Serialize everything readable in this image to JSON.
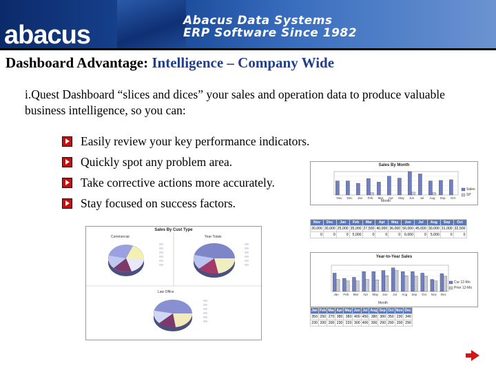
{
  "header": {
    "logo_text": "abacus",
    "brand_line1": "Abacus Data Systems",
    "brand_line2": "ERP Software Since 1982"
  },
  "slide": {
    "title_bold": "Dashboard Advantage:",
    "title_highlight": "Intelligence – Company Wide",
    "intro": "i.Quest Dashboard “slices and dices” your sales and operation data to produce valuable business intelligence, so you can:",
    "bullets": [
      "Easily review your key performance indicators.",
      "Quickly spot any problem area.",
      "Take corrective actions more accurately.",
      "Stay focused on success factors."
    ]
  },
  "colors": {
    "accent_title": "#1f3f8c",
    "bullet_marker": "#c41010",
    "bar_series_1": "#6f7fc0",
    "bar_series_2": "#c8cbd6"
  },
  "pie_panel": {
    "title": "Sales By Cust Type",
    "pie1_label": "Commercial",
    "pie2_label": "Year Totals",
    "pie3_label": "Law Office"
  },
  "bar_panel1": {
    "title": "Sales By Month",
    "xlabel": "Month",
    "legend": [
      "Sales",
      "SP"
    ],
    "table": {
      "headers": [
        "Nov",
        "Dec",
        "Jan",
        "Feb",
        "Mar",
        "Apr",
        "May",
        "Jun",
        "Jul",
        "Aug",
        "Sep",
        "Oct"
      ],
      "row1": [
        "30,000",
        "30,000",
        "25,000",
        "35,000",
        "27,500",
        "40,000",
        "36,000",
        "50,000",
        "45,000",
        "30,000",
        "31,000",
        "32,500"
      ],
      "row2": [
        "0",
        "0",
        "0",
        "5,000",
        "0",
        "0",
        "0",
        "6,000",
        "0",
        "5,000",
        "0",
        "0"
      ]
    }
  },
  "bar_panel2": {
    "title": "Year-to-Year Sales",
    "xlabel": "Month",
    "legend": [
      "Cur 12-Mo",
      "Prior 12-Mo"
    ],
    "table": {
      "headers": [
        "Jan",
        "Feb",
        "Mar",
        "Apr",
        "May",
        "Jun",
        "Jul",
        "Aug",
        "Sep",
        "Oct",
        "Nov",
        "Dec"
      ],
      "row1": [
        "350",
        "250",
        "270",
        "380",
        "380",
        "400",
        "450",
        "380",
        "380",
        "350",
        "230",
        "340"
      ],
      "row2": [
        "230",
        "200",
        "200",
        "230",
        "220",
        "300",
        "400",
        "300",
        "290",
        "290",
        "200",
        "290"
      ]
    }
  },
  "chart_data": [
    {
      "type": "pie",
      "title": "Sales By Cust Type",
      "labels": [
        "Commercial",
        "Year Totals",
        "Law Office"
      ]
    },
    {
      "type": "bar",
      "title": "Sales By Month",
      "categories": [
        "Nov",
        "Dec",
        "Jan",
        "Feb",
        "Mar",
        "Apr",
        "May",
        "Jun",
        "Jul",
        "Aug",
        "Sep",
        "Oct"
      ],
      "series": [
        {
          "name": "Sales",
          "values": [
            30000,
            30000,
            25000,
            35000,
            27500,
            40000,
            36000,
            50000,
            45000,
            30000,
            31000,
            32500
          ]
        },
        {
          "name": "SP",
          "values": [
            0,
            0,
            0,
            5000,
            0,
            0,
            0,
            6000,
            0,
            5000,
            0,
            0
          ]
        }
      ],
      "xlabel": "Month",
      "ylim": [
        0,
        50000
      ]
    },
    {
      "type": "bar",
      "title": "Year-to-Year Sales",
      "categories": [
        "Jan",
        "Feb",
        "Mar",
        "Apr",
        "May",
        "Jun",
        "Jul",
        "Aug",
        "Sep",
        "Oct",
        "Nov",
        "Dec"
      ],
      "series": [
        {
          "name": "Cur 12-Mo",
          "values": [
            350,
            250,
            270,
            380,
            380,
            400,
            450,
            380,
            380,
            350,
            230,
            340
          ]
        },
        {
          "name": "Prior 12-Mo",
          "values": [
            230,
            200,
            200,
            230,
            220,
            300,
            400,
            300,
            290,
            290,
            200,
            290
          ]
        }
      ],
      "xlabel": "Month",
      "ylim": [
        0,
        500
      ]
    }
  ]
}
